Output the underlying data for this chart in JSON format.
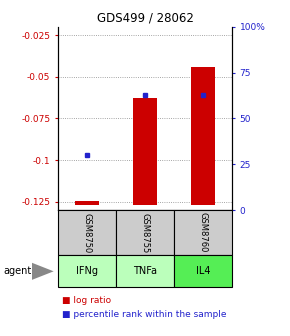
{
  "title": "GDS499 / 28062",
  "categories": [
    "IFNg",
    "TNFa",
    "IL4"
  ],
  "gsm_labels": [
    "GSM8750",
    "GSM8755",
    "GSM8760"
  ],
  "log_ratios": [
    -0.1245,
    -0.063,
    -0.044
  ],
  "percentile_ranks": [
    30,
    63,
    63
  ],
  "ylim": [
    -0.13,
    -0.02
  ],
  "left_ticks": [
    -0.125,
    -0.1,
    -0.075,
    -0.05,
    -0.025
  ],
  "left_tick_labels": [
    "-0.125",
    "-0.1",
    "-0.075",
    "-0.05",
    "-0.025"
  ],
  "right_ticks": [
    0,
    25,
    50,
    75,
    100
  ],
  "right_tick_labels": [
    "0",
    "25",
    "50",
    "75",
    "100%"
  ],
  "bar_color": "#cc0000",
  "dot_color": "#2222cc",
  "cat_colors": [
    "#bbffbb",
    "#bbffbb",
    "#55ee55"
  ],
  "gsm_bg": "#cccccc",
  "bar_width": 0.4,
  "left_color": "#cc0000",
  "right_color": "#2222cc",
  "bar_baseline": -0.127
}
